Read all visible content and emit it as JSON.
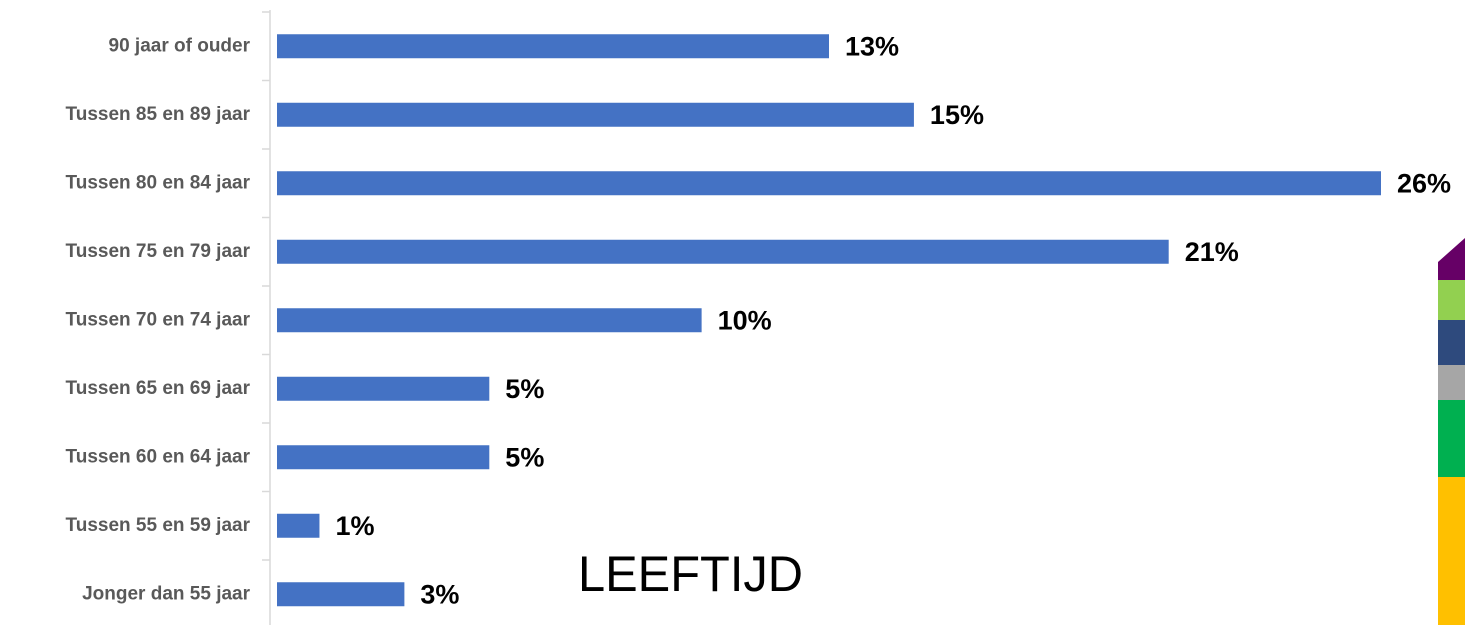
{
  "chart_data": {
    "type": "bar",
    "orientation": "horizontal",
    "annotation": "LEEFTIJD",
    "categories": [
      "90 jaar of ouder",
      "Tussen 85 en 89 jaar",
      "Tussen 80 en 84 jaar",
      "Tussen 75 en 79 jaar",
      "Tussen 70 en 74 jaar",
      "Tussen 65 en 69 jaar",
      "Tussen 60 en 64 jaar",
      "Tussen 55 en 59 jaar",
      "Jonger dan 55 jaar"
    ],
    "values": [
      13,
      15,
      26,
      21,
      10,
      5,
      5,
      1,
      3
    ],
    "value_labels": [
      "13%",
      "15%",
      "26%",
      "21%",
      "10%",
      "5%",
      "5%",
      "1%",
      "3%"
    ],
    "color": "#4472c4"
  }
}
